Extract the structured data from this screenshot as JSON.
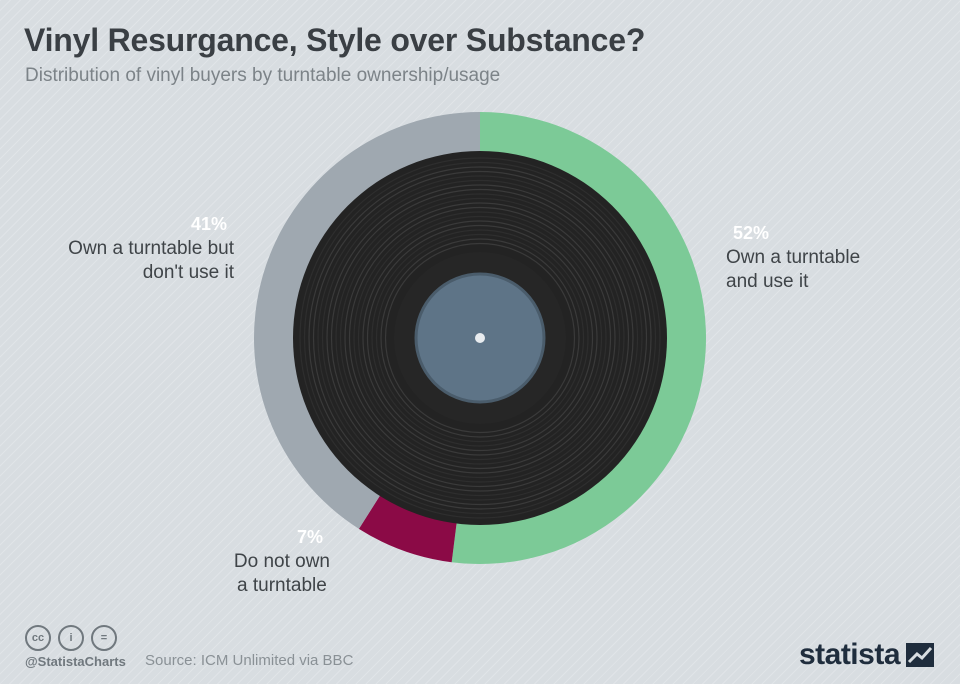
{
  "title": "Vinyl Resurgance, Style over Substance?",
  "subtitle": "Distribution of vinyl buyers by turntable ownership/usage",
  "chart_data": {
    "type": "pie",
    "title": "Vinyl Resurgance, Style over Substance?",
    "subtitle": "Distribution of vinyl buyers by turntable ownership/usage",
    "slices": [
      {
        "label_line1": "Own a turntable",
        "label_line2": "and use it",
        "value": 52,
        "value_label": "52%",
        "color": "#7cca97"
      },
      {
        "label_line1": "Do not own",
        "label_line2": "a turntable",
        "value": 7,
        "value_label": "7%",
        "color": "#8b0a46"
      },
      {
        "label_line1": "Own a turntable but",
        "label_line2": "don't use it",
        "value": 41,
        "value_label": "41%",
        "color": "#9fa8b0"
      }
    ]
  },
  "footer": {
    "cc_icons": [
      "cc",
      "i",
      "="
    ],
    "handle": "@StatistaCharts",
    "source": "Source: ICM Unlimited via BBC",
    "brand": "statista"
  },
  "colors": {
    "background": "#d8dde1",
    "record": "#2a2a2a",
    "record_label": "#5e7487"
  }
}
